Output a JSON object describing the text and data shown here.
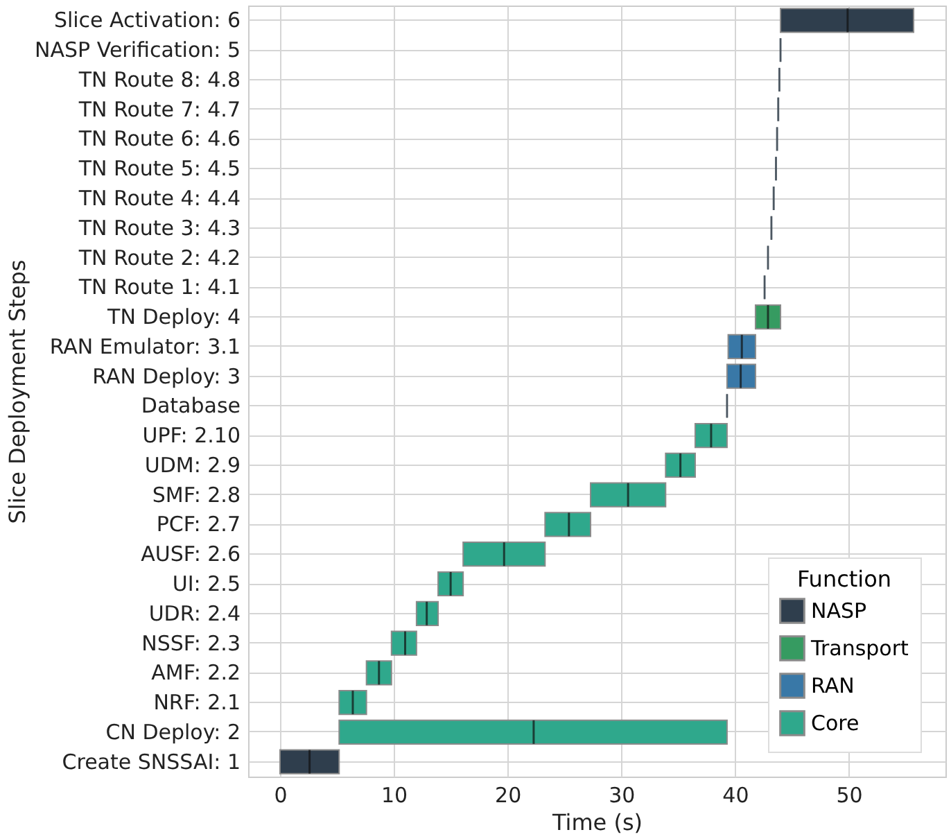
{
  "chart_data": {
    "type": "box",
    "orientation": "horizontal",
    "xlabel": "Time (s)",
    "ylabel": "Slice Deployment Steps",
    "legend_title": "Function",
    "legend": "bottom right",
    "grid": true,
    "categories": [
      "Slice Activation: 6",
      "NASP Verification: 5",
      "TN Route 8: 4.8",
      "TN Route 7: 4.7",
      "TN Route 6: 4.6",
      "TN Route 5: 4.5",
      "TN Route 4: 4.4",
      "TN Route 3: 4.3",
      "TN Route 2: 4.2",
      "TN Route 1: 4.1",
      "TN Deploy: 4",
      "RAN Emulator: 3.1",
      "RAN Deploy: 3",
      "Database",
      "UPF: 2.10",
      "UDM: 2.9",
      "SMF: 2.8",
      "PCF: 2.7",
      "AUSF: 2.6",
      "UI: 2.5",
      "UDR: 2.4",
      "NSSF: 2.3",
      "AMF: 2.2",
      "NRF: 2.1",
      "CN Deploy: 2",
      "Create SNSSAI: 1"
    ],
    "xlim": [
      -2.8,
      58.5
    ],
    "xticks": [
      0,
      10,
      20,
      30,
      40,
      50
    ],
    "series": [
      {
        "name": "NASP",
        "color": "#2f3e4d",
        "boxes": [
          {
            "low": 44.0,
            "q1": 44.0,
            "median": 49.9,
            "q3": 55.7,
            "high": 55.7
          },
          {
            "low": 44.0,
            "q1": 44.0,
            "median": 44.0,
            "q3": 44.0,
            "high": 44.0
          },
          {
            "low": 43.9,
            "q1": 43.9,
            "median": 43.9,
            "q3": 43.9,
            "high": 43.9
          },
          {
            "low": 43.8,
            "q1": 43.8,
            "median": 43.8,
            "q3": 43.8,
            "high": 43.8
          },
          {
            "low": 43.7,
            "q1": 43.7,
            "median": 43.7,
            "q3": 43.7,
            "high": 43.7
          },
          {
            "low": 43.6,
            "q1": 43.6,
            "median": 43.6,
            "q3": 43.6,
            "high": 43.6
          },
          {
            "low": 43.4,
            "q1": 43.4,
            "median": 43.4,
            "q3": 43.4,
            "high": 43.4
          },
          {
            "low": 43.2,
            "q1": 43.2,
            "median": 43.2,
            "q3": 43.2,
            "high": 43.2
          },
          {
            "low": 42.9,
            "q1": 42.9,
            "median": 42.9,
            "q3": 42.9,
            "high": 42.9
          },
          {
            "low": 42.6,
            "q1": 42.6,
            "median": 42.6,
            "q3": 42.6,
            "high": 42.6
          },
          null,
          null,
          null,
          {
            "low": 39.3,
            "q1": 39.3,
            "median": 39.3,
            "q3": 39.3,
            "high": 39.3
          },
          null,
          null,
          null,
          null,
          null,
          null,
          null,
          null,
          null,
          null,
          null,
          {
            "low": 0.0,
            "q1": 0.0,
            "median": 2.6,
            "q3": 5.2,
            "high": 5.2
          }
        ]
      },
      {
        "name": "Transport",
        "color": "#369b61",
        "boxes": [
          null,
          null,
          null,
          null,
          null,
          null,
          null,
          null,
          null,
          null,
          {
            "low": 41.8,
            "q1": 41.8,
            "median": 42.9,
            "q3": 44.0,
            "high": 44.0
          },
          null,
          null,
          null,
          null,
          null,
          null,
          null,
          null,
          null,
          null,
          null,
          null,
          null,
          null,
          null
        ]
      },
      {
        "name": "RAN",
        "color": "#3978a7",
        "boxes": [
          null,
          null,
          null,
          null,
          null,
          null,
          null,
          null,
          null,
          null,
          null,
          {
            "low": 39.4,
            "q1": 39.4,
            "median": 40.6,
            "q3": 41.8,
            "high": 41.8
          },
          {
            "low": 39.3,
            "q1": 39.3,
            "median": 40.5,
            "q3": 41.8,
            "high": 41.8
          },
          null,
          null,
          null,
          null,
          null,
          null,
          null,
          null,
          null,
          null,
          null,
          null,
          null
        ]
      },
      {
        "name": "Core",
        "color": "#2fa88c",
        "boxes": [
          null,
          null,
          null,
          null,
          null,
          null,
          null,
          null,
          null,
          null,
          null,
          null,
          null,
          null,
          {
            "low": 36.5,
            "q1": 36.5,
            "median": 37.9,
            "q3": 39.3,
            "high": 39.3
          },
          {
            "low": 33.9,
            "q1": 33.9,
            "median": 35.2,
            "q3": 36.5,
            "high": 36.5
          },
          {
            "low": 27.3,
            "q1": 27.3,
            "median": 30.6,
            "q3": 33.9,
            "high": 33.9
          },
          {
            "low": 23.3,
            "q1": 23.3,
            "median": 25.4,
            "q3": 27.3,
            "high": 27.3
          },
          {
            "low": 16.1,
            "q1": 16.1,
            "median": 19.7,
            "q3": 23.3,
            "high": 23.3
          },
          {
            "low": 13.9,
            "q1": 13.9,
            "median": 15.0,
            "q3": 16.1,
            "high": 16.1
          },
          {
            "low": 12.0,
            "q1": 12.0,
            "median": 12.9,
            "q3": 13.9,
            "high": 13.9
          },
          {
            "low": 9.8,
            "q1": 9.8,
            "median": 11.0,
            "q3": 12.0,
            "high": 12.0
          },
          {
            "low": 7.6,
            "q1": 7.6,
            "median": 8.7,
            "q3": 9.8,
            "high": 9.8
          },
          {
            "low": 5.2,
            "q1": 5.2,
            "median": 6.4,
            "q3": 7.6,
            "high": 7.6
          },
          {
            "low": 5.2,
            "q1": 5.2,
            "median": 22.3,
            "q3": 39.3,
            "high": 39.3
          },
          null
        ]
      }
    ]
  }
}
